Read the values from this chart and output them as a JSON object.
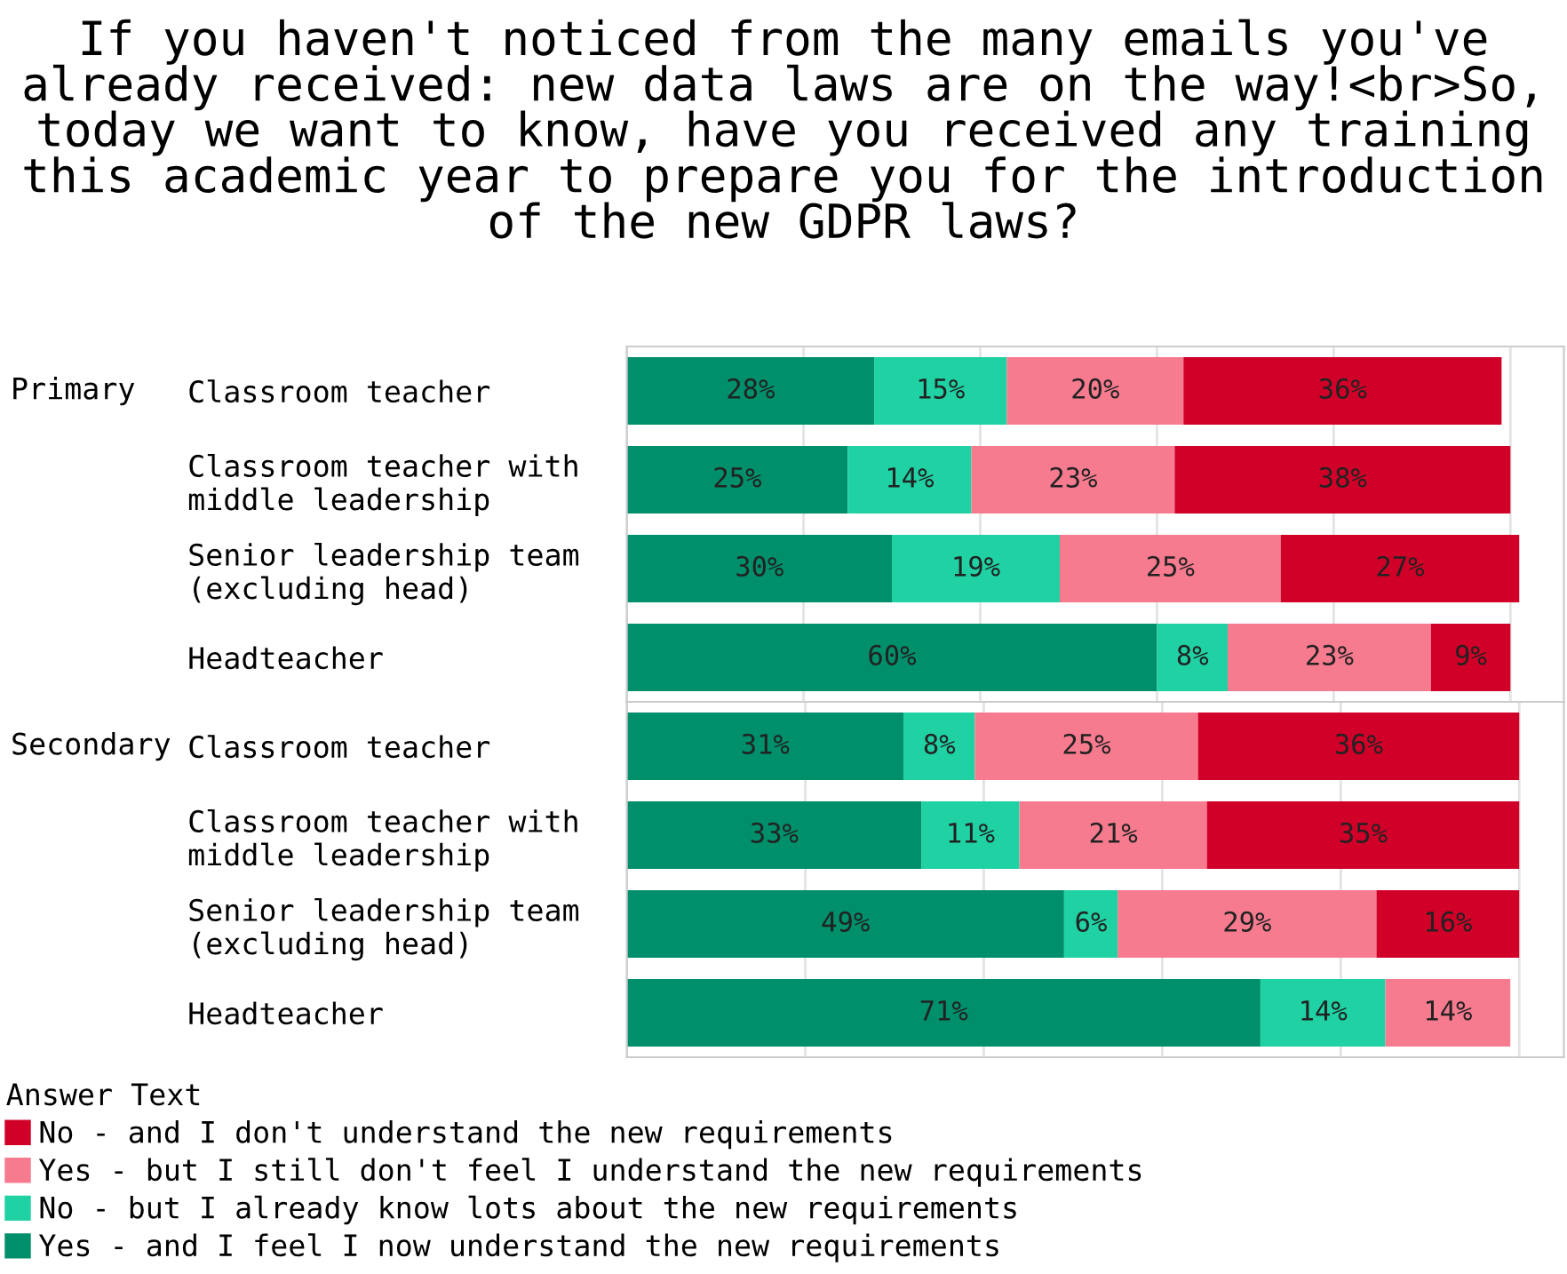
{
  "chart_data": [
    {
      "type": "bar",
      "orientation": "horizontal",
      "stacked": true,
      "title": "If you haven't noticed from the many emails you've already received: new data laws are on the way!<br>So, today we want to know, have you received any training this academic year to prepare you for the introduction of the new GDPR laws?",
      "annotations": [
        "Primary"
      ],
      "categories": [
        "Classroom teacher",
        "Classroom teacher with\nmiddle leadership",
        "Senior leadership team\n(excluding head)",
        "Headteacher"
      ],
      "legend_title": "Answer Text",
      "series": [
        {
          "name": "Yes - and I feel I now understand the new requirements",
          "color": "#008f6b",
          "values": [
            28,
            25,
            30,
            60
          ],
          "value_labels": [
            "28%",
            "25%",
            "30%",
            "60%"
          ]
        },
        {
          "name": "No - but I already know lots about the new requirements",
          "color": "#1fd1a3",
          "values": [
            15,
            14,
            19,
            8
          ],
          "value_labels": [
            "15%",
            "14%",
            "19%",
            "8%"
          ]
        },
        {
          "name": "Yes - but I still don't feel I understand the new requirements",
          "color": "#f77b8f",
          "values": [
            20,
            23,
            25,
            23
          ],
          "value_labels": [
            "20%",
            "23%",
            "25%",
            "23%"
          ]
        },
        {
          "name": "No - and I don't understand the new requirements",
          "color": "#d10028",
          "values": [
            36,
            38,
            27,
            9
          ],
          "value_labels": [
            "36%",
            "38%",
            "27%",
            "9%"
          ]
        }
      ],
      "tick_labels": "y",
      "grid": "x",
      "legend": "bottom left"
    },
    {
      "type": "bar",
      "orientation": "horizontal",
      "stacked": true,
      "annotations": [
        "Secondary"
      ],
      "categories": [
        "Classroom teacher",
        "Classroom teacher with\nmiddle leadership",
        "Senior leadership team\n(excluding head)",
        "Headteacher"
      ],
      "series": [
        {
          "color": "#008f6b",
          "values": [
            31,
            33,
            49,
            71
          ],
          "value_labels": [
            "31%",
            "33%",
            "49%",
            "71%"
          ]
        },
        {
          "color": "#1fd1a3",
          "values": [
            8,
            11,
            6,
            14
          ],
          "value_labels": [
            "8%",
            "11%",
            "6%",
            "14%"
          ]
        },
        {
          "color": "#f77b8f",
          "values": [
            25,
            21,
            29,
            14
          ],
          "value_labels": [
            "25%",
            "21%",
            "29%",
            "14%"
          ]
        },
        {
          "color": "#d10028",
          "values": [
            36,
            35,
            16,
            null
          ],
          "value_labels": [
            "36%",
            "35%",
            "16%",
            null
          ]
        }
      ],
      "tick_labels": "y",
      "grid": "x"
    }
  ]
}
